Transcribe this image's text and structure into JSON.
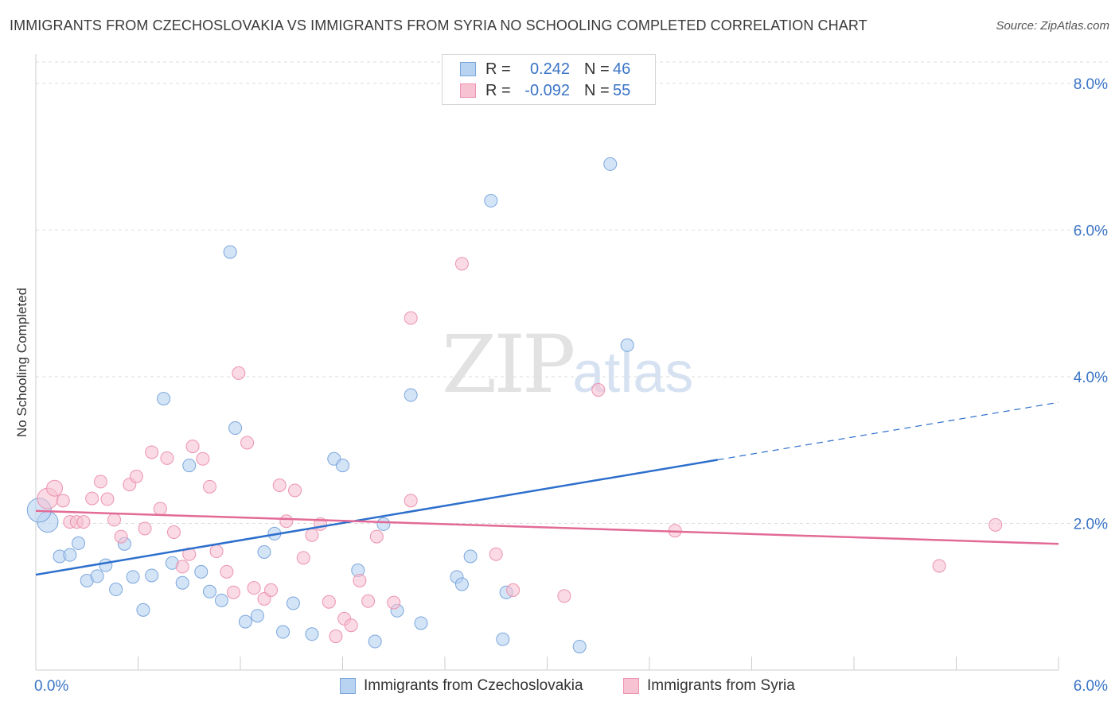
{
  "title": "IMMIGRANTS FROM CZECHOSLOVAKIA VS IMMIGRANTS FROM SYRIA NO SCHOOLING COMPLETED CORRELATION CHART",
  "source": "Source: ZipAtlas.com",
  "watermark": {
    "zip": "ZIP",
    "atlas": "atlas"
  },
  "legend": {
    "series1": {
      "r_label": "R =",
      "r_value": "0.242",
      "n_label": "N =",
      "n_value": "46"
    },
    "series2": {
      "r_label": "R =",
      "r_value": "-0.092",
      "n_label": "N =",
      "n_value": "55"
    }
  },
  "bottom_legend": {
    "series1": "Immigrants from Czechoslovakia",
    "series2": "Immigrants from Syria"
  },
  "colors": {
    "blue_fill": "#b8d2f2",
    "blue_stroke": "#7aa6dc",
    "blue_line": "#2d6fcc",
    "pink_fill": "#f7c2d2",
    "pink_stroke": "#ec93b0",
    "pink_line": "#e26a96",
    "tick_label": "#3a74c6",
    "grid": "#dddddd"
  },
  "chart_data": {
    "type": "scatter",
    "title": "IMMIGRANTS FROM CZECHOSLOVAKIA VS IMMIGRANTS FROM SYRIA NO SCHOOLING COMPLETED CORRELATION CHART",
    "xlabel": "",
    "ylabel": "No Schooling Completed",
    "xlim": [
      0,
      6
    ],
    "ylim": [
      0,
      8.4
    ],
    "x_ticks": [
      "0.0%",
      "6.0%"
    ],
    "y_ticks": [
      "2.0%",
      "4.0%",
      "6.0%",
      "8.0%"
    ],
    "y_tick_values": [
      2,
      4,
      6,
      8
    ],
    "grid": true,
    "legend_placement": "top-center",
    "series": [
      {
        "name": "Immigrants from Czechoslovakia",
        "r": 0.242,
        "n": 46,
        "trend": {
          "x0": 0,
          "y0": 1.3,
          "x1": 6,
          "y1": 3.65,
          "solid_until_x": 4.0
        },
        "points": [
          {
            "x": 0.07,
            "y": 2.02,
            "s": 13
          },
          {
            "x": 0.02,
            "y": 2.18,
            "s": 15
          },
          {
            "x": 0.14,
            "y": 1.55,
            "s": 8
          },
          {
            "x": 0.2,
            "y": 1.57,
            "s": 8
          },
          {
            "x": 0.25,
            "y": 1.73,
            "s": 8
          },
          {
            "x": 0.3,
            "y": 1.22,
            "s": 8
          },
          {
            "x": 0.36,
            "y": 1.28,
            "s": 8
          },
          {
            "x": 0.41,
            "y": 1.43,
            "s": 8
          },
          {
            "x": 0.47,
            "y": 1.1,
            "s": 8
          },
          {
            "x": 0.52,
            "y": 1.72,
            "s": 8
          },
          {
            "x": 0.57,
            "y": 1.27,
            "s": 8
          },
          {
            "x": 0.63,
            "y": 0.82,
            "s": 8
          },
          {
            "x": 0.68,
            "y": 1.29,
            "s": 8
          },
          {
            "x": 0.75,
            "y": 3.7,
            "s": 8
          },
          {
            "x": 0.8,
            "y": 1.46,
            "s": 8
          },
          {
            "x": 0.86,
            "y": 1.19,
            "s": 8
          },
          {
            "x": 0.9,
            "y": 2.79,
            "s": 8
          },
          {
            "x": 0.97,
            "y": 1.34,
            "s": 8
          },
          {
            "x": 1.02,
            "y": 1.07,
            "s": 8
          },
          {
            "x": 1.09,
            "y": 0.95,
            "s": 8
          },
          {
            "x": 1.14,
            "y": 5.7,
            "s": 8
          },
          {
            "x": 1.17,
            "y": 3.3,
            "s": 8
          },
          {
            "x": 1.23,
            "y": 0.66,
            "s": 8
          },
          {
            "x": 1.3,
            "y": 0.74,
            "s": 8
          },
          {
            "x": 1.34,
            "y": 1.61,
            "s": 8
          },
          {
            "x": 1.4,
            "y": 1.86,
            "s": 8
          },
          {
            "x": 1.45,
            "y": 0.52,
            "s": 8
          },
          {
            "x": 1.51,
            "y": 0.91,
            "s": 8
          },
          {
            "x": 1.62,
            "y": 0.49,
            "s": 8
          },
          {
            "x": 1.75,
            "y": 2.88,
            "s": 8
          },
          {
            "x": 1.8,
            "y": 2.79,
            "s": 8
          },
          {
            "x": 1.89,
            "y": 1.36,
            "s": 8
          },
          {
            "x": 1.99,
            "y": 0.39,
            "s": 8
          },
          {
            "x": 2.04,
            "y": 1.99,
            "s": 8
          },
          {
            "x": 2.12,
            "y": 0.81,
            "s": 8
          },
          {
            "x": 2.2,
            "y": 3.75,
            "s": 8
          },
          {
            "x": 2.26,
            "y": 0.64,
            "s": 8
          },
          {
            "x": 2.47,
            "y": 1.27,
            "s": 8
          },
          {
            "x": 2.5,
            "y": 1.17,
            "s": 8
          },
          {
            "x": 2.55,
            "y": 1.55,
            "s": 8
          },
          {
            "x": 2.67,
            "y": 6.4,
            "s": 8
          },
          {
            "x": 2.74,
            "y": 0.42,
            "s": 8
          },
          {
            "x": 2.76,
            "y": 1.06,
            "s": 8
          },
          {
            "x": 3.19,
            "y": 0.32,
            "s": 8
          },
          {
            "x": 3.37,
            "y": 6.9,
            "s": 8
          },
          {
            "x": 3.47,
            "y": 4.43,
            "s": 8
          }
        ]
      },
      {
        "name": "Immigrants from Syria",
        "r": -0.092,
        "n": 55,
        "trend": {
          "x0": 0,
          "y0": 2.17,
          "x1": 6,
          "y1": 1.72,
          "solid_until_x": 6
        },
        "points": [
          {
            "x": 0.07,
            "y": 2.34,
            "s": 13
          },
          {
            "x": 0.11,
            "y": 2.48,
            "s": 10
          },
          {
            "x": 0.16,
            "y": 2.31,
            "s": 8
          },
          {
            "x": 0.2,
            "y": 2.02,
            "s": 8
          },
          {
            "x": 0.24,
            "y": 2.02,
            "s": 8
          },
          {
            "x": 0.28,
            "y": 2.02,
            "s": 8
          },
          {
            "x": 0.33,
            "y": 2.34,
            "s": 8
          },
          {
            "x": 0.38,
            "y": 2.57,
            "s": 8
          },
          {
            "x": 0.42,
            "y": 2.33,
            "s": 8
          },
          {
            "x": 0.46,
            "y": 2.05,
            "s": 8
          },
          {
            "x": 0.5,
            "y": 1.82,
            "s": 8
          },
          {
            "x": 0.55,
            "y": 2.53,
            "s": 8
          },
          {
            "x": 0.59,
            "y": 2.64,
            "s": 8
          },
          {
            "x": 0.64,
            "y": 1.93,
            "s": 8
          },
          {
            "x": 0.68,
            "y": 2.97,
            "s": 8
          },
          {
            "x": 0.73,
            "y": 2.2,
            "s": 8
          },
          {
            "x": 0.77,
            "y": 2.89,
            "s": 8
          },
          {
            "x": 0.81,
            "y": 1.88,
            "s": 8
          },
          {
            "x": 0.86,
            "y": 1.41,
            "s": 8
          },
          {
            "x": 0.9,
            "y": 1.58,
            "s": 8
          },
          {
            "x": 0.92,
            "y": 3.05,
            "s": 8
          },
          {
            "x": 0.98,
            "y": 2.88,
            "s": 8
          },
          {
            "x": 1.02,
            "y": 2.5,
            "s": 8
          },
          {
            "x": 1.06,
            "y": 1.62,
            "s": 8
          },
          {
            "x": 1.12,
            "y": 1.34,
            "s": 8
          },
          {
            "x": 1.16,
            "y": 1.06,
            "s": 8
          },
          {
            "x": 1.19,
            "y": 4.05,
            "s": 8
          },
          {
            "x": 1.24,
            "y": 3.1,
            "s": 8
          },
          {
            "x": 1.28,
            "y": 1.12,
            "s": 8
          },
          {
            "x": 1.34,
            "y": 0.97,
            "s": 8
          },
          {
            "x": 1.38,
            "y": 1.09,
            "s": 8
          },
          {
            "x": 1.43,
            "y": 2.52,
            "s": 8
          },
          {
            "x": 1.47,
            "y": 2.03,
            "s": 8
          },
          {
            "x": 1.52,
            "y": 2.45,
            "s": 8
          },
          {
            "x": 1.57,
            "y": 1.53,
            "s": 8
          },
          {
            "x": 1.62,
            "y": 1.84,
            "s": 8
          },
          {
            "x": 1.67,
            "y": 1.99,
            "s": 8
          },
          {
            "x": 1.72,
            "y": 0.93,
            "s": 8
          },
          {
            "x": 1.76,
            "y": 0.46,
            "s": 8
          },
          {
            "x": 1.81,
            "y": 0.7,
            "s": 8
          },
          {
            "x": 1.85,
            "y": 0.61,
            "s": 8
          },
          {
            "x": 1.9,
            "y": 1.22,
            "s": 8
          },
          {
            "x": 1.95,
            "y": 0.94,
            "s": 8
          },
          {
            "x": 2.0,
            "y": 1.82,
            "s": 8
          },
          {
            "x": 2.1,
            "y": 0.92,
            "s": 8
          },
          {
            "x": 2.2,
            "y": 2.31,
            "s": 8
          },
          {
            "x": 2.2,
            "y": 4.8,
            "s": 8
          },
          {
            "x": 2.5,
            "y": 5.54,
            "s": 8
          },
          {
            "x": 2.7,
            "y": 1.58,
            "s": 8
          },
          {
            "x": 2.8,
            "y": 1.09,
            "s": 8
          },
          {
            "x": 3.1,
            "y": 1.01,
            "s": 8
          },
          {
            "x": 3.3,
            "y": 3.82,
            "s": 8
          },
          {
            "x": 3.75,
            "y": 1.9,
            "s": 8
          },
          {
            "x": 5.3,
            "y": 1.42,
            "s": 8
          },
          {
            "x": 5.63,
            "y": 1.98,
            "s": 8
          }
        ]
      }
    ]
  }
}
